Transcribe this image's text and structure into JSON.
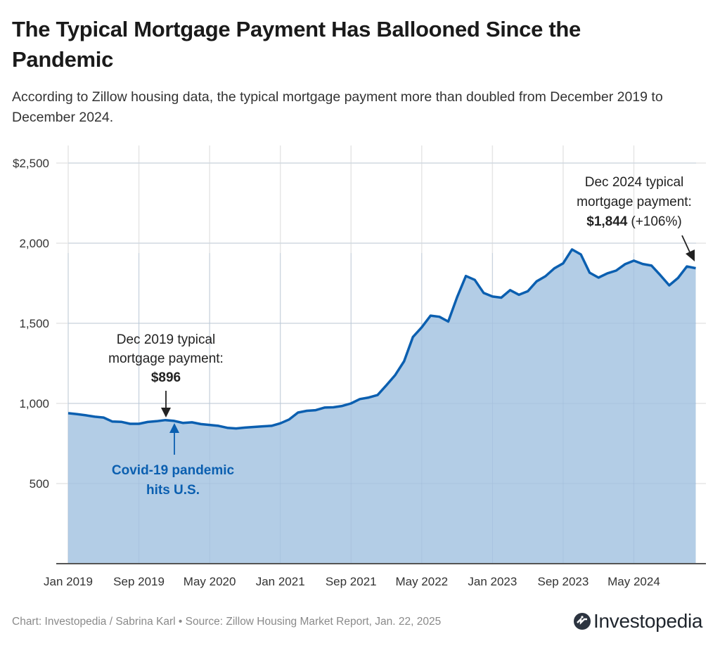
{
  "header": {
    "title": "The Typical Mortgage Payment Has Ballooned Since the Pandemic",
    "subtitle": "According to Zillow housing data, the typical mortgage payment more than doubled from December 2019 to December 2024."
  },
  "annotations": {
    "dec2019_line1": "Dec 2019 typical",
    "dec2019_line2": "mortgage payment:",
    "dec2019_value": "$896",
    "covid_line1": "Covid-19 pandemic",
    "covid_line2": "hits U.S.",
    "dec2024_line1": "Dec 2024 typical",
    "dec2024_line2": "mortgage payment:",
    "dec2024_value": "$1,844",
    "dec2024_change": "(+106%)"
  },
  "footer": {
    "source": "Chart: Investopedia / Sabrina Karl • Source: Zillow Housing Market Report, Jan. 22, 2025",
    "logo_text": "Investopedia"
  },
  "colors": {
    "line": "#0b5fb0",
    "area": "#b3cde6",
    "grid": "#e6e6e6",
    "axis": "#555555",
    "covid_annotation": "#0b5fb0"
  },
  "chart_data": {
    "type": "area",
    "title": "The Typical Mortgage Payment Has Ballooned Since the Pandemic",
    "xlabel": "",
    "ylabel": "",
    "ylim": [
      0,
      2500
    ],
    "yticks": [
      "",
      "500",
      "1,000",
      "1,500",
      "2,000",
      "$2,500"
    ],
    "ytick_values": [
      0,
      500,
      1000,
      1500,
      2000,
      2500
    ],
    "xtick_labels": [
      "Jan 2019",
      "Sep 2019",
      "May 2020",
      "Jan 2021",
      "Sep 2021",
      "May 2022",
      "Jan 2023",
      "Sep 2023",
      "May 2024"
    ],
    "grid": true,
    "legend": "none",
    "x": [
      "Jan 2019",
      "Feb 2019",
      "Mar 2019",
      "Apr 2019",
      "May 2019",
      "Jun 2019",
      "Jul 2019",
      "Aug 2019",
      "Sep 2019",
      "Oct 2019",
      "Nov 2019",
      "Dec 2019",
      "Jan 2020",
      "Feb 2020",
      "Mar 2020",
      "Apr 2020",
      "May 2020",
      "Jun 2020",
      "Jul 2020",
      "Aug 2020",
      "Sep 2020",
      "Oct 2020",
      "Nov 2020",
      "Dec 2020",
      "Jan 2021",
      "Feb 2021",
      "Mar 2021",
      "Apr 2021",
      "May 2021",
      "Jun 2021",
      "Jul 2021",
      "Aug 2021",
      "Sep 2021",
      "Oct 2021",
      "Nov 2021",
      "Dec 2021",
      "Jan 2022",
      "Feb 2022",
      "Mar 2022",
      "Apr 2022",
      "May 2022",
      "Jun 2022",
      "Jul 2022",
      "Aug 2022",
      "Sep 2022",
      "Oct 2022",
      "Nov 2022",
      "Dec 2022",
      "Jan 2023",
      "Feb 2023",
      "Mar 2023",
      "Apr 2023",
      "May 2023",
      "Jun 2023",
      "Jul 2023",
      "Aug 2023",
      "Sep 2023",
      "Oct 2023",
      "Nov 2023",
      "Dec 2023",
      "Jan 2024",
      "Feb 2024",
      "Mar 2024",
      "Apr 2024",
      "May 2024",
      "Jun 2024",
      "Jul 2024",
      "Aug 2024",
      "Sep 2024",
      "Oct 2024",
      "Nov 2024",
      "Dec 2024"
    ],
    "series": [
      {
        "name": "Typical mortgage payment",
        "values": [
          939,
          933,
          926,
          917,
          912,
          887,
          885,
          873,
          873,
          884,
          889,
          896,
          891,
          878,
          882,
          871,
          866,
          860,
          848,
          844,
          849,
          853,
          857,
          860,
          876,
          900,
          943,
          954,
          958,
          974,
          976,
          984,
          1000,
          1027,
          1037,
          1052,
          1113,
          1177,
          1263,
          1414,
          1475,
          1548,
          1541,
          1511,
          1663,
          1795,
          1771,
          1690,
          1667,
          1660,
          1707,
          1678,
          1700,
          1762,
          1794,
          1843,
          1874,
          1961,
          1930,
          1816,
          1785,
          1812,
          1829,
          1869,
          1891,
          1870,
          1860,
          1800,
          1737,
          1783,
          1855,
          1844
        ]
      }
    ]
  }
}
